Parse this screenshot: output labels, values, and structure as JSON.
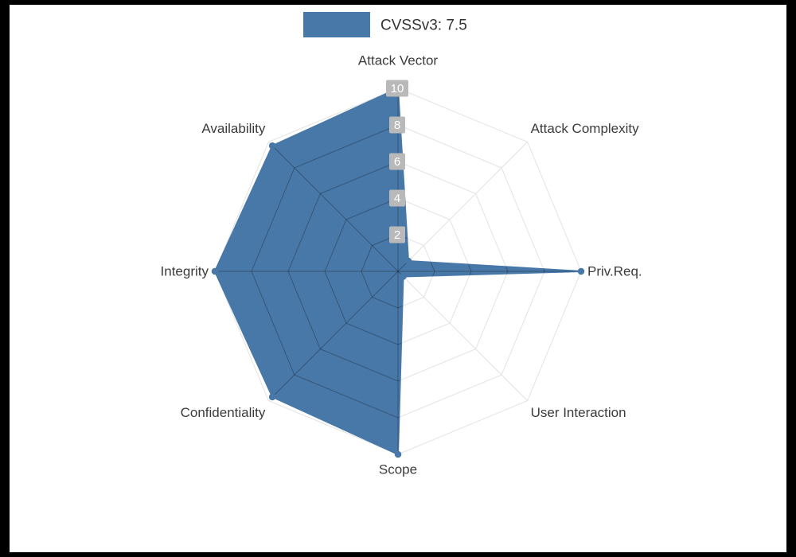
{
  "legend": {
    "label": "CVSSv3: 7.5"
  },
  "colors": {
    "accent": "#4878a8",
    "axis_label": "#3b3b3b",
    "tick_bg": "#b9b9b9",
    "tick_text": "#ffffff",
    "grid_outer": "#e3e3e3",
    "grid_inner": "rgba(0,0,0,0.28)",
    "background": "#ffffff",
    "frame": "#000000"
  },
  "chart_data": {
    "type": "radar",
    "title": "CVSSv3: 7.5",
    "indicators": [
      "Attack Vector",
      "Attack Complexity",
      "Priv.Req.",
      "User Interaction",
      "Scope",
      "Confidentiality",
      "Integrity",
      "Availability"
    ],
    "max": 10,
    "tick_values": [
      2,
      4,
      6,
      8,
      10
    ],
    "series": [
      {
        "name": "CVSSv3: 7.5",
        "values": [
          10,
          0.8,
          10,
          0.4,
          10,
          9.7,
          10,
          9.7
        ],
        "color": "#4878a8"
      }
    ],
    "grid": true,
    "grid_shape": "polygon",
    "legend_position": "top-center",
    "axis_range": [
      0,
      10
    ]
  }
}
